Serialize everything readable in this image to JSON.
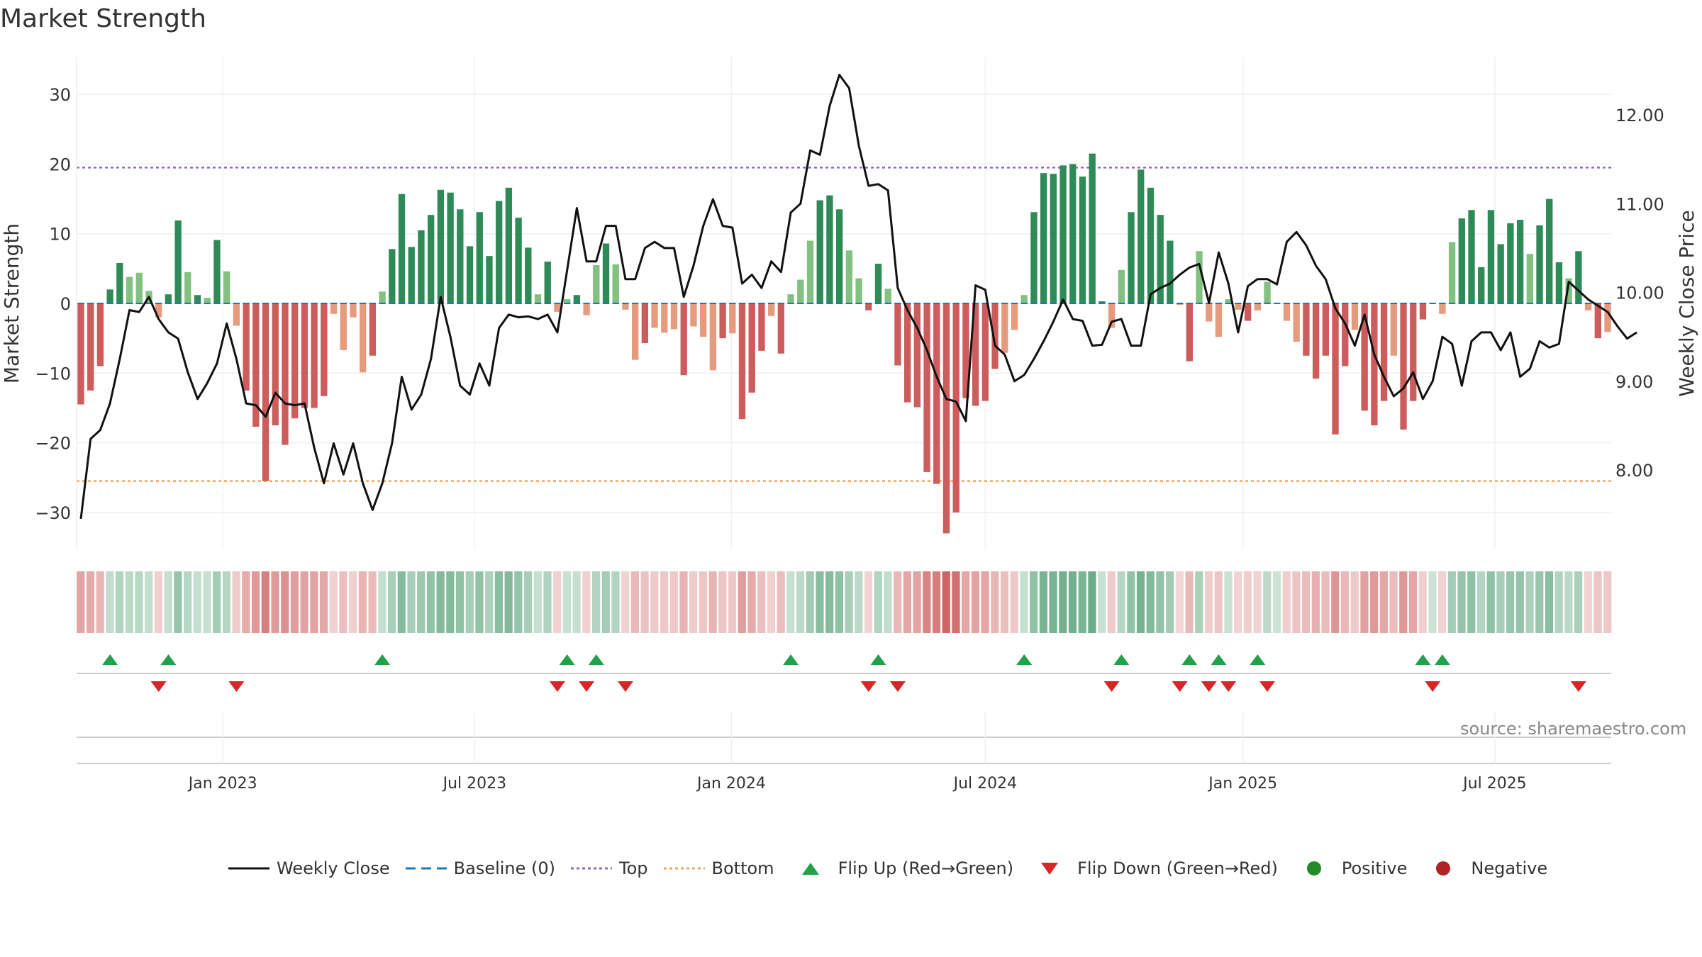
{
  "chart_data": {
    "type": "bar",
    "title": "Market Strength",
    "ylabel": "Market Strength",
    "y2label": "Weekly Close Price",
    "ylim": [
      -35,
      36
    ],
    "y2lim": [
      7.25,
      12.6
    ],
    "yticks": [
      30,
      20,
      10,
      0,
      -10,
      -20,
      -30
    ],
    "ytick_labels": [
      "30",
      "20",
      "10",
      "0",
      "−10",
      "−20",
      "−30"
    ],
    "y2ticks": [
      12.0,
      11.0,
      10.0,
      9.0,
      8.0
    ],
    "y2tick_labels": [
      "12.00",
      "11.00",
      "10.00",
      "9.00",
      "8.00"
    ],
    "date_ticks": [
      "Jan 2023",
      "Jul 2023",
      "Jan 2024",
      "Jul 2024",
      "Jan 2025",
      "Jul 2025"
    ],
    "date_tick_positions": [
      14.6,
      40.5,
      66.9,
      93.0,
      119.5,
      145.4
    ],
    "top_line": 19.5,
    "bottom_line": -25.5,
    "baseline": 0,
    "grid": true,
    "legend_position": "bottom",
    "colors": {
      "strong_positive": "#2e8b57",
      "weak_positive": "#82c17f",
      "strong_negative": "#cd5c5c",
      "weak_negative": "#e69b7e",
      "close_line": "#111111",
      "baseline": "#1f77b4",
      "top": "#9467bd",
      "bottom": "#f4a460",
      "flip_up": "#22a04a",
      "flip_down": "#d62728",
      "positive_dot": "#228b22",
      "negative_dot": "#b22222"
    },
    "strength": [
      -14.5,
      -12.5,
      -9.0,
      2.0,
      5.8,
      3.8,
      4.4,
      1.8,
      -2.0,
      1.3,
      11.9,
      4.5,
      1.2,
      0.8,
      9.1,
      4.6,
      -3.2,
      -12.5,
      -17.7,
      -25.5,
      -17.5,
      -20.3,
      -16.5,
      -15.0,
      -15.0,
      -13.3,
      -1.5,
      -6.7,
      -2.0,
      -9.9,
      -7.5,
      1.7,
      7.8,
      15.7,
      8.1,
      10.5,
      12.7,
      16.3,
      15.9,
      13.5,
      8.2,
      13.1,
      6.8,
      14.7,
      16.6,
      12.3,
      8.0,
      1.3,
      6.0,
      -1.2,
      0.6,
      1.2,
      -1.7,
      5.5,
      8.6,
      5.6,
      -0.9,
      -8.1,
      -5.7,
      -3.5,
      -4.2,
      -3.7,
      -10.3,
      -3.3,
      -4.8,
      -9.6,
      -5.0,
      -4.3,
      -16.6,
      -12.8,
      -6.8,
      -1.8,
      -7.2,
      1.3,
      3.4,
      9.0,
      14.8,
      15.5,
      13.5,
      7.6,
      3.6,
      -1.0,
      5.7,
      2.1,
      -8.9,
      -14.2,
      -14.9,
      -24.2,
      -25.9,
      -33.0,
      -30.0,
      -13.6,
      -14.7,
      -14.0,
      -9.4,
      -7.1,
      -3.8,
      1.2,
      13.1,
      18.7,
      18.6,
      19.8,
      20.0,
      18.2,
      21.5,
      0.3,
      -3.5,
      4.8,
      13.1,
      19.2,
      16.6,
      12.7,
      9.0,
      -0.2,
      -8.3,
      7.5,
      -2.6,
      -4.8,
      0.6,
      -0.9,
      -2.5,
      -1.0,
      3.1,
      0.0,
      -2.5,
      -5.5,
      -7.5,
      -10.8,
      -7.5,
      -18.8,
      -9.0,
      -3.8,
      -15.4,
      -17.5,
      -14.0,
      -7.5,
      -18.1,
      -14.0,
      -2.3,
      0.0,
      -1.5,
      8.8,
      12.2,
      13.4,
      5.2,
      13.4,
      8.5,
      11.5,
      12.0,
      7.1,
      11.2,
      15.0,
      5.9,
      3.6,
      7.5,
      -1.0,
      -5.0,
      -4.1
    ],
    "weekly_close": [
      7.45,
      8.35,
      8.45,
      8.75,
      9.25,
      9.8,
      9.78,
      9.95,
      9.7,
      9.55,
      9.48,
      9.1,
      8.8,
      8.98,
      9.2,
      9.65,
      9.25,
      8.75,
      8.73,
      8.6,
      8.87,
      8.75,
      8.73,
      8.75,
      8.25,
      7.85,
      8.3,
      7.95,
      8.3,
      7.85,
      7.55,
      7.85,
      8.3,
      9.05,
      8.68,
      8.85,
      9.25,
      9.95,
      9.5,
      8.95,
      8.85,
      9.2,
      8.95,
      9.6,
      9.75,
      9.72,
      9.73,
      9.7,
      9.75,
      9.55,
      10.25,
      10.95,
      10.35,
      10.35,
      10.75,
      10.75,
      10.15,
      10.15,
      10.5,
      10.57,
      10.5,
      10.5,
      9.95,
      10.3,
      10.75,
      11.05,
      10.75,
      10.73,
      10.1,
      10.2,
      10.05,
      10.35,
      10.23,
      10.9,
      11.0,
      11.6,
      11.55,
      12.1,
      12.45,
      12.3,
      11.65,
      11.2,
      11.22,
      11.15,
      10.05,
      9.8,
      9.6,
      9.35,
      9.05,
      8.8,
      8.77,
      8.55,
      10.08,
      10.03,
      9.4,
      9.3,
      9.0,
      9.07,
      9.25,
      9.45,
      9.67,
      9.92,
      9.7,
      9.68,
      9.4,
      9.41,
      9.67,
      9.7,
      9.4,
      9.4,
      9.98,
      10.05,
      10.1,
      10.2,
      10.28,
      10.32,
      9.88,
      10.45,
      10.1,
      9.55,
      10.07,
      10.15,
      10.15,
      10.09,
      10.57,
      10.68,
      10.53,
      10.3,
      10.15,
      9.82,
      9.65,
      9.4,
      9.75,
      9.3,
      9.05,
      8.83,
      8.92,
      9.1,
      8.8,
      9.0,
      9.5,
      9.42,
      8.95,
      9.45,
      9.55,
      9.55,
      9.35,
      9.55,
      9.05,
      9.14,
      9.45,
      9.38,
      9.42,
      10.12,
      10.02,
      9.92,
      9.85,
      9.78,
      9.62,
      9.48,
      9.55
    ],
    "flip_up_weeks": [
      3,
      9,
      31,
      50,
      53,
      73,
      82,
      97,
      107,
      114,
      117,
      121,
      138,
      140
    ],
    "flip_down_weeks": [
      8,
      16,
      49,
      52,
      56,
      81,
      84,
      106,
      113,
      116,
      118,
      122,
      139,
      154
    ]
  },
  "source": "source: sharemaestro.com",
  "legend": [
    {
      "label": "Weekly Close",
      "kind": "line",
      "color": "#111111"
    },
    {
      "label": "Baseline (0)",
      "kind": "dash",
      "color": "#1f77b4"
    },
    {
      "label": "Top",
      "kind": "dot",
      "color": "#9467bd"
    },
    {
      "label": "Bottom",
      "kind": "dot",
      "color": "#f4a460"
    },
    {
      "label": "Flip Up (Red→Green)",
      "kind": "tri-up",
      "color": "#22a04a"
    },
    {
      "label": "Flip Down (Green→Red)",
      "kind": "tri-down",
      "color": "#d62728"
    },
    {
      "label": "Positive",
      "kind": "circle",
      "color": "#228b22"
    },
    {
      "label": "Negative",
      "kind": "circle",
      "color": "#b22222"
    }
  ]
}
